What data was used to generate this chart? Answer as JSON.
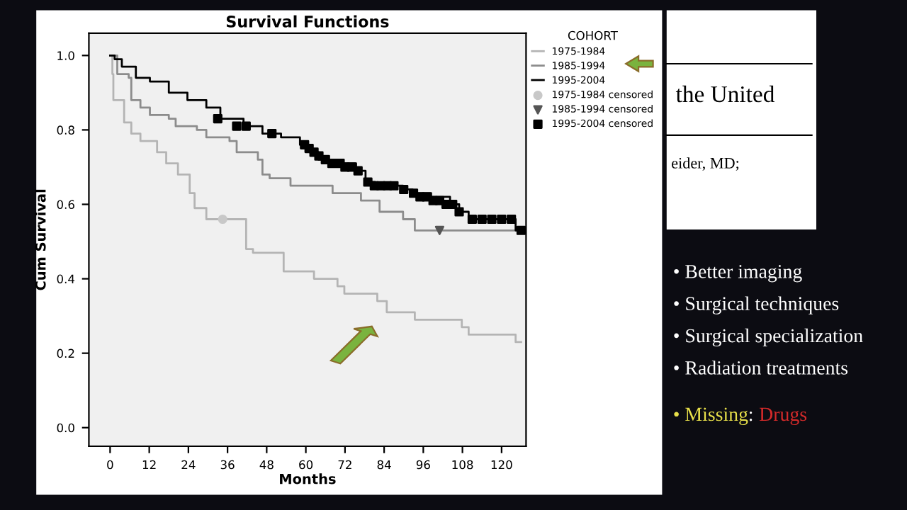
{
  "chart_data": {
    "type": "step",
    "title": "Survival Functions",
    "xlabel": "Months",
    "ylabel": "Cum Survival",
    "legend_title": "COHORT",
    "legend": "right",
    "xlim": [
      -6.5,
      127.5
    ],
    "xticks": [
      0,
      12,
      24,
      36,
      48,
      60,
      72,
      84,
      96,
      108,
      120
    ],
    "ylim": [
      -0.05,
      1.06
    ],
    "yticks": [
      {
        "value": 0,
        "label": "0.0"
      },
      {
        "value": 0.2,
        "label": "0.2"
      },
      {
        "value": 0.4,
        "label": "0.4"
      },
      {
        "value": 0.6,
        "label": "0.6"
      },
      {
        "value": 0.8,
        "label": "0.8"
      },
      {
        "value": 1,
        "label": "1.0"
      }
    ],
    "grid": false,
    "series": [
      {
        "name": "1975-1984",
        "color": "#b4b4b4",
        "x": [
          0,
          0.7,
          1,
          4.3,
          6.5,
          9.3,
          14.4,
          17.2,
          20.8,
          24.4,
          25.9,
          29.5,
          41.7,
          43.8,
          53.2,
          62.5,
          69.7,
          71.8,
          81.9,
          84.8,
          93.4,
          107.8,
          109.9,
          124.3,
          126
        ],
        "values": [
          1,
          0.95,
          0.88,
          0.82,
          0.79,
          0.77,
          0.74,
          0.71,
          0.68,
          0.63,
          0.59,
          0.56,
          0.48,
          0.47,
          0.42,
          0.4,
          0.38,
          0.36,
          0.34,
          0.31,
          0.29,
          0.27,
          0.25,
          0.23,
          0.23
        ]
      },
      {
        "name": "1985-1994",
        "color": "#8c8c8c",
        "x": [
          0,
          2.2,
          5.7,
          6.5,
          9.3,
          12.2,
          18,
          20.1,
          26.6,
          29.5,
          36.6,
          38.8,
          45.3,
          46.7,
          48.9,
          55.3,
          68.2,
          76.9,
          82.6,
          89.8,
          93.4,
          126
        ],
        "values": [
          1,
          0.95,
          0.94,
          0.88,
          0.86,
          0.84,
          0.83,
          0.81,
          0.8,
          0.78,
          0.77,
          0.74,
          0.72,
          0.68,
          0.67,
          0.65,
          0.63,
          0.61,
          0.58,
          0.56,
          0.53,
          0.53
        ]
      },
      {
        "name": "1995-2004",
        "color": "#000000",
        "x": [
          0,
          1.4,
          3.6,
          7.9,
          12.2,
          18,
          23.7,
          29.5,
          33.8,
          40.9,
          46.7,
          52.4,
          58.2,
          61.1,
          63.9,
          69.7,
          75.4,
          78.3,
          81.2,
          89.8,
          92.7,
          98.4,
          104.2,
          107,
          109.9,
          124.3,
          126
        ],
        "values": [
          1,
          0.99,
          0.97,
          0.94,
          0.93,
          0.9,
          0.88,
          0.86,
          0.83,
          0.81,
          0.79,
          0.78,
          0.76,
          0.74,
          0.72,
          0.71,
          0.69,
          0.66,
          0.65,
          0.64,
          0.63,
          0.62,
          0.6,
          0.58,
          0.56,
          0.53,
          0.53
        ]
      },
      {
        "name": "1975-1984 censored",
        "type": "scatter",
        "marker": "circle",
        "color": "#c8c8c8",
        "x": [
          34.5
        ],
        "values": [
          0.56
        ]
      },
      {
        "name": "1985-1994 censored",
        "type": "scatter",
        "marker": "triangle",
        "color": "#555555",
        "x": [
          101
        ],
        "values": [
          0.53
        ]
      },
      {
        "name": "1995-2004 censored",
        "type": "scatter",
        "marker": "square",
        "color": "#000000",
        "x": [
          33,
          38.8,
          41.7,
          49.6,
          59.6,
          61,
          62.5,
          64,
          66,
          68,
          70.5,
          72,
          74,
          76,
          79,
          81,
          83,
          85,
          87,
          90,
          93,
          95,
          97,
          99,
          101,
          103,
          105,
          107,
          111,
          114,
          117,
          120,
          123,
          126
        ],
        "values": [
          0.83,
          0.81,
          0.81,
          0.79,
          0.76,
          0.75,
          0.74,
          0.73,
          0.72,
          0.71,
          0.71,
          0.7,
          0.7,
          0.69,
          0.66,
          0.65,
          0.65,
          0.65,
          0.65,
          0.64,
          0.63,
          0.62,
          0.62,
          0.61,
          0.61,
          0.6,
          0.6,
          0.58,
          0.56,
          0.56,
          0.56,
          0.56,
          0.56,
          0.53
        ]
      }
    ],
    "annotations": [
      "the United",
      "eider, MD;",
      "• Better imaging",
      "• Surgical techniques",
      "• Surgical specialization",
      "• Radiation treatments",
      "• Missing",
      ":",
      "Drugs"
    ]
  }
}
